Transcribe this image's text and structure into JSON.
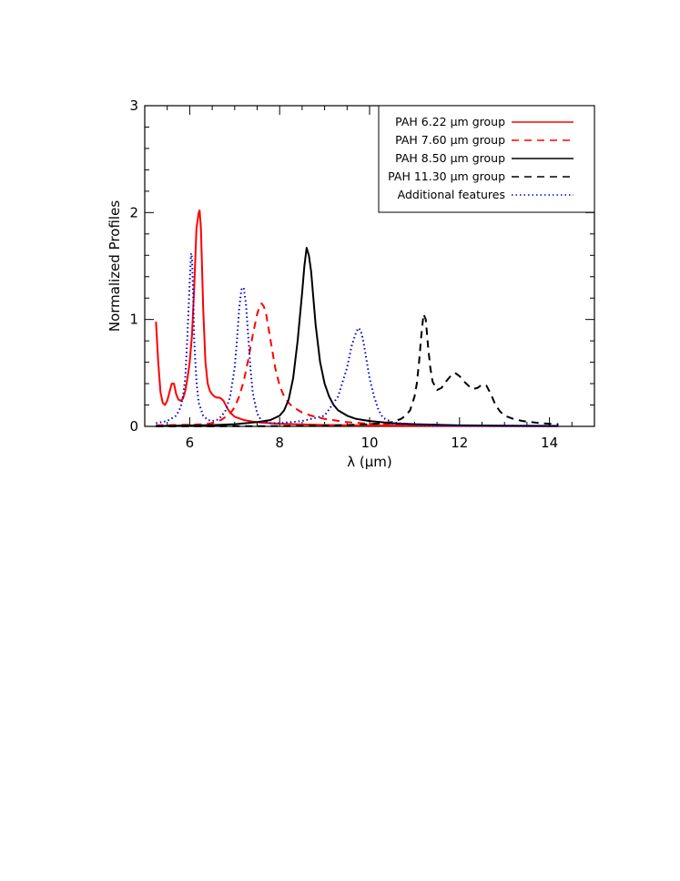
{
  "chart_data": {
    "type": "line",
    "title": "",
    "xlabel": "λ (μm)",
    "ylabel": "Normalized Profiles",
    "xlim": [
      5.0,
      15.0
    ],
    "ylim": [
      0,
      3
    ],
    "x_ticks": [
      "6",
      "8",
      "10",
      "12",
      "14"
    ],
    "y_ticks": [
      "0",
      "1",
      "2",
      "3"
    ],
    "grid": false,
    "legend_position": "top-right",
    "series": [
      {
        "name": "PAH 6.22 μm group",
        "color": "#ff0000",
        "style": "solid",
        "x": [
          5.25,
          5.3,
          5.35,
          5.4,
          5.45,
          5.5,
          5.55,
          5.6,
          5.65,
          5.7,
          5.75,
          5.8,
          5.85,
          5.9,
          5.95,
          6.0,
          6.05,
          6.1,
          6.15,
          6.2,
          6.22,
          6.25,
          6.3,
          6.35,
          6.4,
          6.45,
          6.5,
          6.55,
          6.6,
          6.65,
          6.7,
          6.75,
          6.8,
          6.85,
          6.9,
          7.0,
          7.2,
          7.4,
          7.6,
          7.8,
          8.0,
          8.5,
          9.0,
          10.0,
          11.0,
          12.0,
          13.0,
          14.2
        ],
        "y": [
          0.98,
          0.6,
          0.32,
          0.22,
          0.2,
          0.24,
          0.32,
          0.4,
          0.4,
          0.3,
          0.25,
          0.24,
          0.26,
          0.33,
          0.45,
          0.6,
          0.85,
          1.3,
          1.85,
          2.0,
          2.02,
          1.85,
          1.1,
          0.6,
          0.4,
          0.33,
          0.3,
          0.28,
          0.27,
          0.27,
          0.26,
          0.24,
          0.2,
          0.16,
          0.13,
          0.09,
          0.06,
          0.045,
          0.035,
          0.03,
          0.025,
          0.018,
          0.013,
          0.008,
          0.006,
          0.004,
          0.003,
          0.002
        ]
      },
      {
        "name": "PAH 7.60 μm group",
        "color": "#ff0000",
        "style": "dashed",
        "x": [
          5.25,
          5.5,
          6.0,
          6.3,
          6.5,
          6.7,
          6.9,
          7.0,
          7.1,
          7.2,
          7.3,
          7.4,
          7.5,
          7.55,
          7.6,
          7.65,
          7.7,
          7.8,
          7.9,
          8.0,
          8.1,
          8.2,
          8.3,
          8.5,
          8.7,
          9.0,
          9.5,
          10.0,
          11.0,
          12.0,
          13.0,
          14.2
        ],
        "y": [
          0.01,
          0.012,
          0.015,
          0.02,
          0.03,
          0.06,
          0.12,
          0.18,
          0.28,
          0.42,
          0.62,
          0.85,
          1.05,
          1.12,
          1.15,
          1.12,
          1.05,
          0.8,
          0.55,
          0.38,
          0.28,
          0.22,
          0.18,
          0.13,
          0.1,
          0.07,
          0.04,
          0.025,
          0.012,
          0.008,
          0.005,
          0.003
        ]
      },
      {
        "name": "PAH 8.50 μm group",
        "color": "#000000",
        "style": "solid",
        "x": [
          5.25,
          6.0,
          6.5,
          7.0,
          7.5,
          7.8,
          8.0,
          8.1,
          8.2,
          8.3,
          8.4,
          8.5,
          8.55,
          8.6,
          8.65,
          8.7,
          8.75,
          8.8,
          8.9,
          9.0,
          9.1,
          9.2,
          9.3,
          9.5,
          9.7,
          10.0,
          10.5,
          11.0,
          12.0,
          13.0,
          14.2
        ],
        "y": [
          0.003,
          0.008,
          0.012,
          0.02,
          0.04,
          0.06,
          0.1,
          0.15,
          0.25,
          0.45,
          0.8,
          1.25,
          1.5,
          1.67,
          1.6,
          1.45,
          1.2,
          0.95,
          0.6,
          0.4,
          0.28,
          0.2,
          0.15,
          0.1,
          0.07,
          0.05,
          0.03,
          0.02,
          0.01,
          0.006,
          0.004
        ]
      },
      {
        "name": "PAH 11.30 μm group",
        "color": "#000000",
        "style": "dashed",
        "x": [
          5.25,
          8.0,
          9.0,
          10.0,
          10.5,
          10.7,
          10.8,
          10.9,
          11.0,
          11.05,
          11.1,
          11.15,
          11.2,
          11.25,
          11.3,
          11.35,
          11.4,
          11.5,
          11.6,
          11.7,
          11.8,
          11.9,
          12.0,
          12.1,
          12.2,
          12.3,
          12.4,
          12.5,
          12.6,
          12.7,
          12.8,
          12.9,
          13.0,
          13.2,
          13.4,
          13.6,
          13.8,
          14.0,
          14.2
        ],
        "y": [
          0.0,
          0.003,
          0.006,
          0.02,
          0.04,
          0.07,
          0.1,
          0.15,
          0.28,
          0.4,
          0.6,
          0.85,
          1.05,
          1.0,
          0.75,
          0.55,
          0.42,
          0.34,
          0.36,
          0.42,
          0.47,
          0.5,
          0.47,
          0.42,
          0.38,
          0.35,
          0.36,
          0.39,
          0.38,
          0.3,
          0.2,
          0.14,
          0.1,
          0.07,
          0.05,
          0.04,
          0.03,
          0.025,
          0.02
        ]
      },
      {
        "name": "Additional features",
        "color": "#0000cc",
        "style": "dotted",
        "x": [
          5.25,
          5.5,
          5.7,
          5.8,
          5.85,
          5.9,
          5.95,
          6.0,
          6.03,
          6.05,
          6.08,
          6.1,
          6.15,
          6.2,
          6.3,
          6.4,
          6.5,
          6.6,
          6.7,
          6.8,
          6.9,
          7.0,
          7.05,
          7.1,
          7.15,
          7.2,
          7.25,
          7.3,
          7.35,
          7.4,
          7.5,
          7.6,
          7.8,
          8.0,
          8.5,
          9.0,
          9.3,
          9.5,
          9.6,
          9.7,
          9.75,
          9.8,
          9.85,
          9.9,
          10.0,
          10.1,
          10.2,
          10.3,
          10.5,
          10.8,
          11.2,
          12.0,
          13.0,
          14.2
        ],
        "y": [
          0.03,
          0.05,
          0.1,
          0.18,
          0.28,
          0.45,
          0.85,
          1.35,
          1.62,
          1.58,
          1.2,
          0.8,
          0.42,
          0.22,
          0.1,
          0.06,
          0.05,
          0.06,
          0.09,
          0.15,
          0.28,
          0.55,
          0.8,
          1.1,
          1.28,
          1.3,
          1.15,
          0.85,
          0.55,
          0.32,
          0.12,
          0.05,
          0.03,
          0.03,
          0.05,
          0.1,
          0.28,
          0.55,
          0.75,
          0.88,
          0.92,
          0.9,
          0.82,
          0.7,
          0.45,
          0.28,
          0.15,
          0.08,
          0.04,
          0.02,
          0.01,
          0.005,
          0.003,
          0.002
        ]
      }
    ]
  }
}
